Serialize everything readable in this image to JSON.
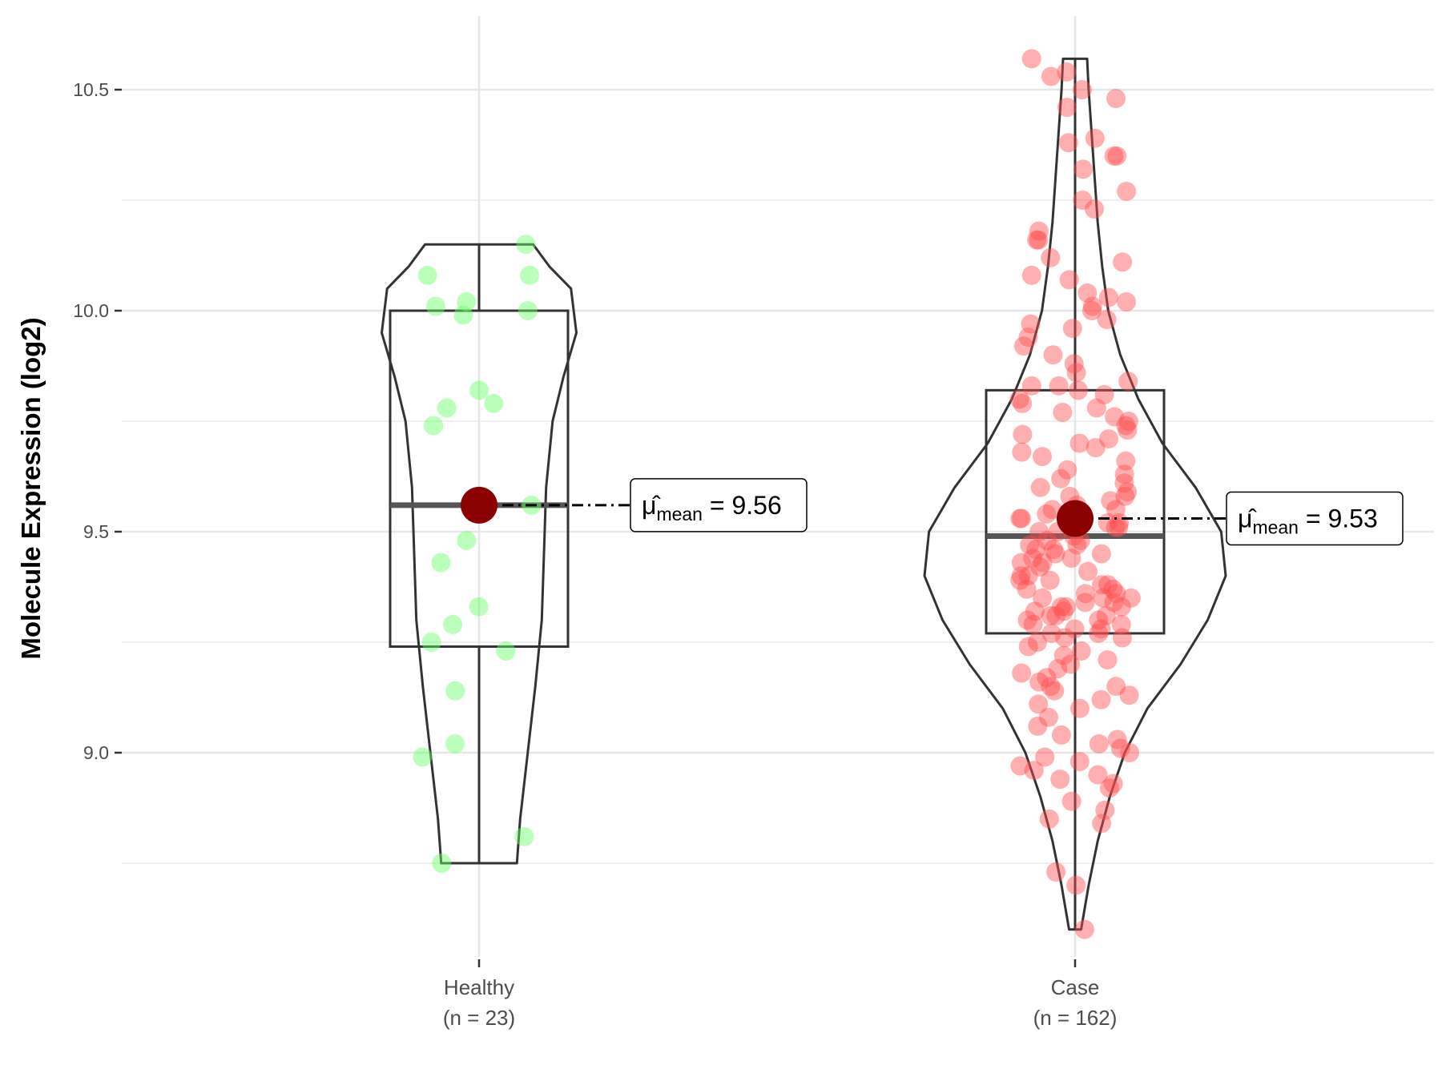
{
  "chart_data": {
    "type": "violin",
    "ylabel": "Molecule Expression (log2)",
    "ylim": [
      8.6,
      10.6
    ],
    "yticks": [
      9.0,
      9.5,
      10.0,
      10.5
    ],
    "ytick_labels": [
      "9.0",
      "9.5",
      "10.0",
      "10.5"
    ],
    "grid": true,
    "groups": [
      {
        "name": "Healthy",
        "n_label": "(n = 23)",
        "color": "#66ff66",
        "min": 8.75,
        "q1": 9.24,
        "median": 9.56,
        "q3": 10.0,
        "max": 10.15,
        "mean": 9.56,
        "mean_label_value": "9.56",
        "density": [
          [
            8.75,
            0.35
          ],
          [
            8.85,
            0.38
          ],
          [
            9.0,
            0.45
          ],
          [
            9.15,
            0.52
          ],
          [
            9.3,
            0.58
          ],
          [
            9.45,
            0.6
          ],
          [
            9.6,
            0.62
          ],
          [
            9.75,
            0.68
          ],
          [
            9.85,
            0.78
          ],
          [
            9.95,
            0.9
          ],
          [
            10.05,
            0.85
          ],
          [
            10.1,
            0.65
          ],
          [
            10.15,
            0.5
          ]
        ],
        "points": [
          10.15,
          10.08,
          10.08,
          10.02,
          10.0,
          10.01,
          9.99,
          9.82,
          9.79,
          9.78,
          9.74,
          9.56,
          9.48,
          9.43,
          9.33,
          9.29,
          9.25,
          9.23,
          9.14,
          9.02,
          8.99,
          8.81,
          8.75
        ]
      },
      {
        "name": "Case",
        "n_label": "(n = 162)",
        "color": "#ff4d4d",
        "min": 8.6,
        "q1": 9.27,
        "median": 9.49,
        "q3": 9.82,
        "max": 10.57,
        "mean": 9.53,
        "mean_label_value": "9.53",
        "density": [
          [
            8.6,
            0.04
          ],
          [
            8.7,
            0.09
          ],
          [
            8.8,
            0.15
          ],
          [
            8.9,
            0.23
          ],
          [
            9.0,
            0.33
          ],
          [
            9.1,
            0.48
          ],
          [
            9.2,
            0.7
          ],
          [
            9.3,
            0.88
          ],
          [
            9.4,
            1.0
          ],
          [
            9.5,
            0.97
          ],
          [
            9.6,
            0.8
          ],
          [
            9.7,
            0.58
          ],
          [
            9.8,
            0.42
          ],
          [
            9.9,
            0.3
          ],
          [
            10.0,
            0.22
          ],
          [
            10.1,
            0.18
          ],
          [
            10.2,
            0.15
          ],
          [
            10.3,
            0.13
          ],
          [
            10.4,
            0.11
          ],
          [
            10.5,
            0.09
          ],
          [
            10.57,
            0.08
          ]
        ],
        "points": [
          10.57,
          10.54,
          10.53,
          10.5,
          10.48,
          10.46,
          10.39,
          10.38,
          10.35,
          10.35,
          10.32,
          10.27,
          10.25,
          10.23,
          10.18,
          10.16,
          10.16,
          10.11,
          10.08,
          10.07,
          10.04,
          10.03,
          10.02,
          10.01,
          10.0,
          9.97,
          9.96,
          9.94,
          9.9,
          9.88,
          9.86,
          9.84,
          9.83,
          9.83,
          9.82,
          9.81,
          9.79,
          9.77,
          9.76,
          9.74,
          9.73,
          9.71,
          9.7,
          9.69,
          9.68,
          9.67,
          9.66,
          9.63,
          9.62,
          9.6,
          9.59,
          9.58,
          9.57,
          9.56,
          9.55,
          9.54,
          9.53,
          9.53,
          9.52,
          9.51,
          9.5,
          9.5,
          9.49,
          9.48,
          9.47,
          9.46,
          9.46,
          9.45,
          9.45,
          9.44,
          9.43,
          9.42,
          9.41,
          9.4,
          9.4,
          9.39,
          9.38,
          9.37,
          9.37,
          9.36,
          9.36,
          9.35,
          9.35,
          9.34,
          9.34,
          9.33,
          9.33,
          9.32,
          9.32,
          9.31,
          9.31,
          9.3,
          9.3,
          9.29,
          9.28,
          9.28,
          9.27,
          9.26,
          9.25,
          9.24,
          9.22,
          9.21,
          9.2,
          9.19,
          9.18,
          9.17,
          9.16,
          9.15,
          9.15,
          9.14,
          9.13,
          9.12,
          9.11,
          9.1,
          9.08,
          9.06,
          9.04,
          9.03,
          9.02,
          9.01,
          9.0,
          8.99,
          8.98,
          8.97,
          8.96,
          8.95,
          8.94,
          8.93,
          8.92,
          8.89,
          8.87,
          8.85,
          8.84,
          8.73,
          8.7,
          8.6,
          9.58,
          9.61,
          9.64,
          9.72,
          9.75,
          9.78,
          9.8,
          9.92,
          9.98,
          10.12,
          9.48,
          9.44,
          9.39,
          9.33,
          9.29,
          9.26,
          9.23,
          9.43,
          9.47,
          9.51,
          9.38,
          9.35,
          9.31,
          9.27,
          9.52,
          9.55
        ]
      }
    ]
  }
}
